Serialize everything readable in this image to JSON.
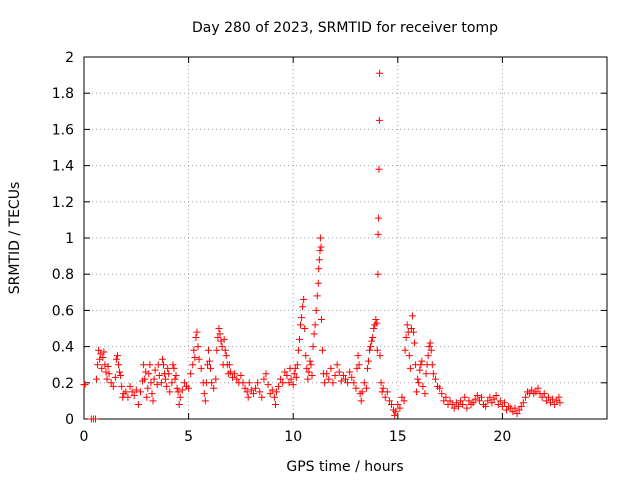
{
  "chart_data": {
    "type": "scatter",
    "title": "Day 280 of 2023, SRMTID for receiver tomp",
    "xlabel": "GPS time / hours",
    "ylabel": "SRMTID / TECUs",
    "xlim": [
      0,
      25
    ],
    "ylim": [
      0,
      2
    ],
    "x_ticks": [
      "0",
      "5",
      "10",
      "15",
      "20"
    ],
    "y_ticks": [
      "0",
      "0.2",
      "0.4",
      "0.6",
      "0.8",
      "1",
      "1.2",
      "1.4",
      "1.6",
      "1.8",
      "2"
    ],
    "grid": true,
    "marker": "+",
    "color": "#ff0000",
    "series": [
      {
        "name": "SRMTID",
        "points": [
          [
            0.0,
            0.19
          ],
          [
            0.05,
            0.19
          ],
          [
            0.35,
            0.0
          ],
          [
            0.45,
            0.0
          ],
          [
            0.55,
            0.0
          ],
          [
            0.6,
            0.22
          ],
          [
            0.65,
            0.3
          ],
          [
            0.7,
            0.38
          ],
          [
            0.75,
            0.33
          ],
          [
            0.8,
            0.36
          ],
          [
            0.85,
            0.28
          ],
          [
            0.9,
            0.34
          ],
          [
            0.95,
            0.37
          ],
          [
            1.0,
            0.3
          ],
          [
            1.05,
            0.26
          ],
          [
            1.1,
            0.22
          ],
          [
            1.15,
            0.29
          ],
          [
            1.2,
            0.25
          ],
          [
            1.3,
            0.2
          ],
          [
            1.4,
            0.18
          ],
          [
            1.5,
            0.23
          ],
          [
            1.55,
            0.33
          ],
          [
            1.6,
            0.35
          ],
          [
            1.65,
            0.3
          ],
          [
            1.7,
            0.26
          ],
          [
            1.75,
            0.24
          ],
          [
            1.8,
            0.18
          ],
          [
            1.85,
            0.12
          ],
          [
            1.9,
            0.14
          ],
          [
            2.0,
            0.15
          ],
          [
            2.1,
            0.12
          ],
          [
            2.2,
            0.18
          ],
          [
            2.3,
            0.15
          ],
          [
            2.4,
            0.13
          ],
          [
            2.5,
            0.16
          ],
          [
            2.6,
            0.08
          ],
          [
            2.7,
            0.15
          ],
          [
            2.8,
            0.21
          ],
          [
            2.85,
            0.3
          ],
          [
            2.9,
            0.22
          ],
          [
            2.95,
            0.26
          ],
          [
            3.0,
            0.12
          ],
          [
            3.05,
            0.17
          ],
          [
            3.1,
            0.25
          ],
          [
            3.15,
            0.3
          ],
          [
            3.2,
            0.2
          ],
          [
            3.25,
            0.14
          ],
          [
            3.3,
            0.1
          ],
          [
            3.35,
            0.22
          ],
          [
            3.4,
            0.27
          ],
          [
            3.5,
            0.19
          ],
          [
            3.55,
            0.3
          ],
          [
            3.6,
            0.24
          ],
          [
            3.7,
            0.2
          ],
          [
            3.75,
            0.33
          ],
          [
            3.8,
            0.3
          ],
          [
            3.85,
            0.25
          ],
          [
            3.9,
            0.22
          ],
          [
            3.95,
            0.18
          ],
          [
            4.0,
            0.28
          ],
          [
            4.05,
            0.25
          ],
          [
            4.1,
            0.15
          ],
          [
            4.2,
            0.2
          ],
          [
            4.25,
            0.3
          ],
          [
            4.3,
            0.28
          ],
          [
            4.35,
            0.22
          ],
          [
            4.4,
            0.24
          ],
          [
            4.45,
            0.17
          ],
          [
            4.5,
            0.15
          ],
          [
            4.55,
            0.08
          ],
          [
            4.6,
            0.12
          ],
          [
            4.7,
            0.16
          ],
          [
            4.8,
            0.2
          ],
          [
            4.9,
            0.18
          ],
          [
            5.0,
            0.17
          ],
          [
            5.1,
            0.25
          ],
          [
            5.2,
            0.3
          ],
          [
            5.25,
            0.38
          ],
          [
            5.3,
            0.34
          ],
          [
            5.35,
            0.45
          ],
          [
            5.4,
            0.48
          ],
          [
            5.45,
            0.4
          ],
          [
            5.5,
            0.33
          ],
          [
            5.6,
            0.28
          ],
          [
            5.7,
            0.2
          ],
          [
            5.75,
            0.14
          ],
          [
            5.8,
            0.1
          ],
          [
            5.85,
            0.2
          ],
          [
            5.9,
            0.3
          ],
          [
            5.95,
            0.38
          ],
          [
            6.0,
            0.32
          ],
          [
            6.05,
            0.28
          ],
          [
            6.1,
            0.2
          ],
          [
            6.2,
            0.17
          ],
          [
            6.3,
            0.22
          ],
          [
            6.35,
            0.38
          ],
          [
            6.4,
            0.45
          ],
          [
            6.45,
            0.5
          ],
          [
            6.5,
            0.47
          ],
          [
            6.55,
            0.43
          ],
          [
            6.6,
            0.4
          ],
          [
            6.65,
            0.3
          ],
          [
            6.7,
            0.44
          ],
          [
            6.75,
            0.38
          ],
          [
            6.8,
            0.35
          ],
          [
            6.85,
            0.3
          ],
          [
            6.9,
            0.25
          ],
          [
            6.95,
            0.3
          ],
          [
            7.0,
            0.26
          ],
          [
            7.1,
            0.23
          ],
          [
            7.2,
            0.25
          ],
          [
            7.3,
            0.22
          ],
          [
            7.4,
            0.2
          ],
          [
            7.5,
            0.24
          ],
          [
            7.6,
            0.2
          ],
          [
            7.7,
            0.17
          ],
          [
            7.8,
            0.15
          ],
          [
            7.85,
            0.12
          ],
          [
            7.9,
            0.2
          ],
          [
            8.0,
            0.16
          ],
          [
            8.1,
            0.14
          ],
          [
            8.2,
            0.17
          ],
          [
            8.3,
            0.2
          ],
          [
            8.4,
            0.15
          ],
          [
            8.5,
            0.12
          ],
          [
            8.6,
            0.22
          ],
          [
            8.7,
            0.25
          ],
          [
            8.8,
            0.19
          ],
          [
            8.9,
            0.14
          ],
          [
            9.0,
            0.16
          ],
          [
            9.1,
            0.12
          ],
          [
            9.15,
            0.08
          ],
          [
            9.2,
            0.15
          ],
          [
            9.3,
            0.18
          ],
          [
            9.4,
            0.22
          ],
          [
            9.5,
            0.2
          ],
          [
            9.6,
            0.26
          ],
          [
            9.7,
            0.24
          ],
          [
            9.8,
            0.2
          ],
          [
            9.85,
            0.28
          ],
          [
            9.9,
            0.22
          ],
          [
            10.0,
            0.19
          ],
          [
            10.05,
            0.25
          ],
          [
            10.1,
            0.28
          ],
          [
            10.15,
            0.23
          ],
          [
            10.2,
            0.3
          ],
          [
            10.25,
            0.38
          ],
          [
            10.3,
            0.44
          ],
          [
            10.35,
            0.52
          ],
          [
            10.4,
            0.56
          ],
          [
            10.45,
            0.62
          ],
          [
            10.5,
            0.66
          ],
          [
            10.55,
            0.5
          ],
          [
            10.6,
            0.35
          ],
          [
            10.65,
            0.28
          ],
          [
            10.7,
            0.22
          ],
          [
            10.75,
            0.26
          ],
          [
            10.8,
            0.32
          ],
          [
            10.85,
            0.3
          ],
          [
            10.9,
            0.24
          ],
          [
            10.95,
            0.4
          ],
          [
            11.0,
            0.47
          ],
          [
            11.05,
            0.52
          ],
          [
            11.1,
            0.6
          ],
          [
            11.15,
            0.68
          ],
          [
            11.2,
            0.75
          ],
          [
            11.22,
            0.83
          ],
          [
            11.25,
            0.88
          ],
          [
            11.28,
            0.93
          ],
          [
            11.3,
            1.0
          ],
          [
            11.33,
            0.95
          ],
          [
            11.35,
            0.55
          ],
          [
            11.4,
            0.38
          ],
          [
            11.45,
            0.25
          ],
          [
            11.5,
            0.2
          ],
          [
            11.6,
            0.25
          ],
          [
            11.7,
            0.22
          ],
          [
            11.8,
            0.28
          ],
          [
            11.9,
            0.2
          ],
          [
            12.0,
            0.24
          ],
          [
            12.1,
            0.3
          ],
          [
            12.2,
            0.26
          ],
          [
            12.3,
            0.21
          ],
          [
            12.4,
            0.24
          ],
          [
            12.5,
            0.22
          ],
          [
            12.6,
            0.2
          ],
          [
            12.7,
            0.26
          ],
          [
            12.8,
            0.23
          ],
          [
            12.9,
            0.2
          ],
          [
            13.0,
            0.17
          ],
          [
            13.05,
            0.28
          ],
          [
            13.1,
            0.35
          ],
          [
            13.15,
            0.3
          ],
          [
            13.2,
            0.14
          ],
          [
            13.25,
            0.1
          ],
          [
            13.3,
            0.15
          ],
          [
            13.4,
            0.2
          ],
          [
            13.5,
            0.17
          ],
          [
            13.55,
            0.28
          ],
          [
            13.6,
            0.32
          ],
          [
            13.65,
            0.38
          ],
          [
            13.7,
            0.4
          ],
          [
            13.75,
            0.43
          ],
          [
            13.8,
            0.45
          ],
          [
            13.85,
            0.5
          ],
          [
            13.9,
            0.52
          ],
          [
            13.95,
            0.55
          ],
          [
            14.0,
            0.53
          ],
          [
            14.02,
            0.38
          ],
          [
            14.05,
            0.8
          ],
          [
            14.06,
            1.02
          ],
          [
            14.08,
            1.11
          ],
          [
            14.1,
            1.38
          ],
          [
            14.12,
            1.65
          ],
          [
            14.13,
            1.91
          ],
          [
            14.15,
            0.35
          ],
          [
            14.2,
            0.2
          ],
          [
            14.25,
            0.15
          ],
          [
            14.3,
            0.17
          ],
          [
            14.4,
            0.12
          ],
          [
            14.5,
            0.15
          ],
          [
            14.6,
            0.1
          ],
          [
            14.7,
            0.08
          ],
          [
            14.8,
            0.05
          ],
          [
            14.85,
            0.02
          ],
          [
            14.9,
            0.04
          ],
          [
            15.0,
            0.08
          ],
          [
            15.1,
            0.06
          ],
          [
            15.2,
            0.12
          ],
          [
            15.3,
            0.1
          ],
          [
            15.35,
            0.38
          ],
          [
            15.4,
            0.45
          ],
          [
            15.45,
            0.52
          ],
          [
            15.5,
            0.48
          ],
          [
            15.55,
            0.35
          ],
          [
            15.6,
            0.28
          ],
          [
            15.65,
            0.5
          ],
          [
            15.7,
            0.57
          ],
          [
            15.75,
            0.48
          ],
          [
            15.8,
            0.42
          ],
          [
            15.85,
            0.3
          ],
          [
            15.9,
            0.15
          ],
          [
            15.95,
            0.22
          ],
          [
            16.0,
            0.2
          ],
          [
            16.05,
            0.27
          ],
          [
            16.1,
            0.3
          ],
          [
            16.15,
            0.32
          ],
          [
            16.2,
            0.18
          ],
          [
            16.3,
            0.14
          ],
          [
            16.35,
            0.25
          ],
          [
            16.4,
            0.3
          ],
          [
            16.45,
            0.35
          ],
          [
            16.5,
            0.4
          ],
          [
            16.55,
            0.42
          ],
          [
            16.6,
            0.38
          ],
          [
            16.65,
            0.3
          ],
          [
            16.7,
            0.25
          ],
          [
            16.8,
            0.22
          ],
          [
            16.9,
            0.18
          ],
          [
            17.0,
            0.17
          ],
          [
            17.1,
            0.14
          ],
          [
            17.2,
            0.1
          ],
          [
            17.3,
            0.12
          ],
          [
            17.4,
            0.08
          ],
          [
            17.5,
            0.1
          ],
          [
            17.6,
            0.08
          ],
          [
            17.7,
            0.06
          ],
          [
            17.8,
            0.09
          ],
          [
            17.9,
            0.07
          ],
          [
            18.0,
            0.1
          ],
          [
            18.1,
            0.08
          ],
          [
            18.2,
            0.12
          ],
          [
            18.3,
            0.06
          ],
          [
            18.4,
            0.1
          ],
          [
            18.5,
            0.08
          ],
          [
            18.6,
            0.09
          ],
          [
            18.7,
            0.11
          ],
          [
            18.8,
            0.13
          ],
          [
            18.9,
            0.1
          ],
          [
            19.0,
            0.12
          ],
          [
            19.1,
            0.08
          ],
          [
            19.2,
            0.07
          ],
          [
            19.3,
            0.1
          ],
          [
            19.4,
            0.12
          ],
          [
            19.5,
            0.09
          ],
          [
            19.6,
            0.11
          ],
          [
            19.7,
            0.13
          ],
          [
            19.8,
            0.08
          ],
          [
            19.9,
            0.1
          ],
          [
            20.0,
            0.07
          ],
          [
            20.1,
            0.09
          ],
          [
            20.2,
            0.05
          ],
          [
            20.3,
            0.07
          ],
          [
            20.4,
            0.06
          ],
          [
            20.5,
            0.04
          ],
          [
            20.6,
            0.06
          ],
          [
            20.7,
            0.03
          ],
          [
            20.8,
            0.05
          ],
          [
            20.9,
            0.07
          ],
          [
            21.0,
            0.09
          ],
          [
            21.1,
            0.12
          ],
          [
            21.2,
            0.15
          ],
          [
            21.3,
            0.14
          ],
          [
            21.4,
            0.16
          ],
          [
            21.5,
            0.14
          ],
          [
            21.6,
            0.15
          ],
          [
            21.7,
            0.17
          ],
          [
            21.8,
            0.14
          ],
          [
            21.9,
            0.12
          ],
          [
            22.0,
            0.14
          ],
          [
            22.1,
            0.1
          ],
          [
            22.2,
            0.12
          ],
          [
            22.3,
            0.09
          ],
          [
            22.4,
            0.11
          ],
          [
            22.5,
            0.08
          ],
          [
            22.6,
            0.1
          ],
          [
            22.7,
            0.12
          ],
          [
            22.75,
            0.09
          ]
        ]
      }
    ]
  }
}
